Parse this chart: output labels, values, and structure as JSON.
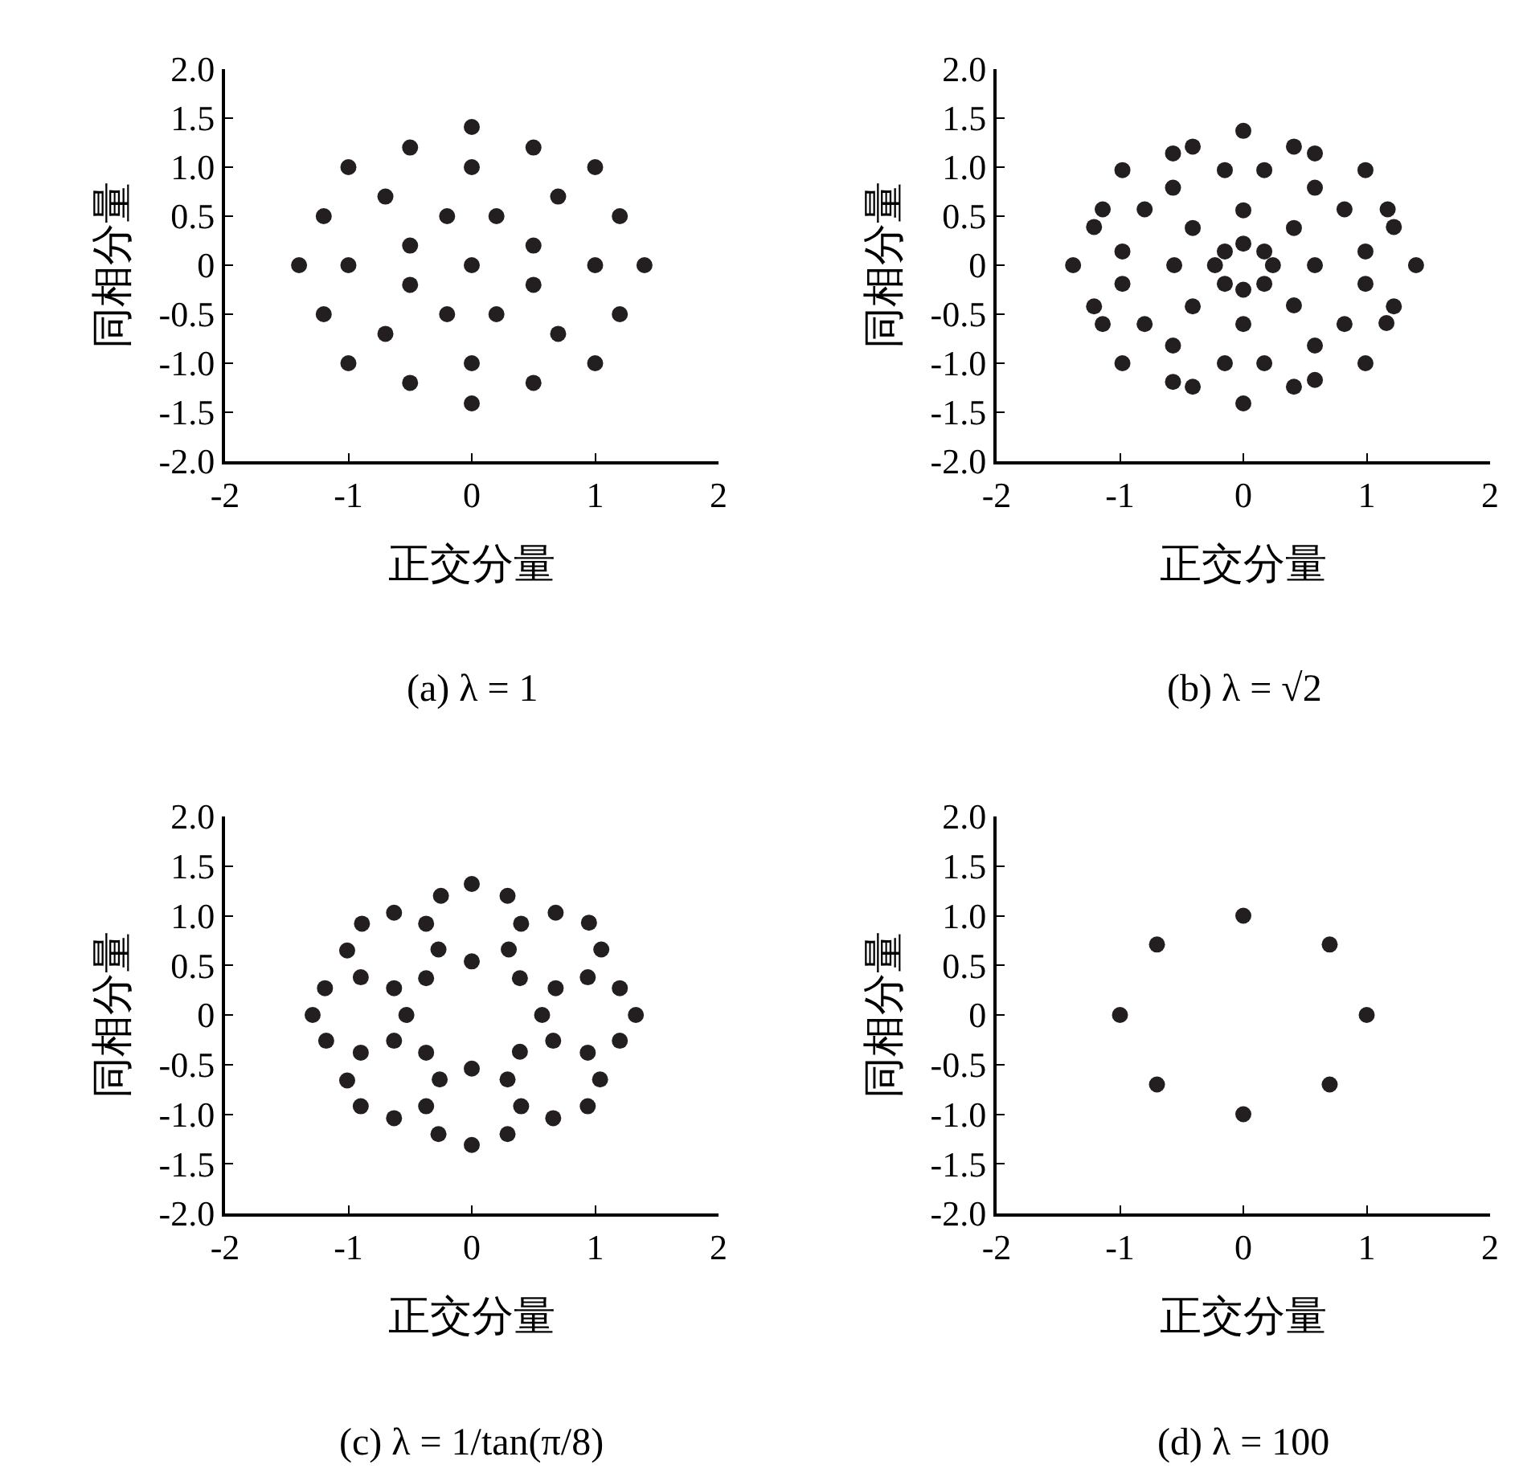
{
  "chart_data": [
    {
      "type": "scatter",
      "title": "(a) λ = 1",
      "xlabel": "正交分量",
      "ylabel": "同相分量",
      "color": "#231f20",
      "marker": "circle",
      "grid": false,
      "x": [
        0,
        -0.5,
        0.5,
        -1,
        0,
        1,
        -0.7,
        0.7,
        -1.2,
        -0.2,
        0.2,
        1.2,
        -0.5,
        0.5,
        -1.4,
        -1,
        0,
        1,
        1.4,
        -0.5,
        0.5,
        -1.2,
        -0.2,
        0.2,
        1.2,
        -0.7,
        0.7,
        -1,
        0,
        1,
        -0.5,
        0.5,
        0
      ],
      "values": [
        1.41,
        1.2,
        1.2,
        1,
        1,
        1,
        0.7,
        0.7,
        0.5,
        0.5,
        0.5,
        0.5,
        0.2,
        0.2,
        0,
        0,
        0,
        0,
        0,
        -0.2,
        -0.2,
        -0.5,
        -0.5,
        -0.5,
        -0.5,
        -0.7,
        -0.7,
        -1,
        -1,
        -1,
        -1.2,
        -1.2,
        -1.41
      ],
      "xlim": [
        -2,
        2
      ],
      "xticks": [
        -2,
        -1,
        0,
        1,
        2
      ],
      "ylim": [
        -2,
        2
      ],
      "yticks": [
        {
          "value": -2,
          "label": "-2.0"
        },
        {
          "value": -1.5,
          "label": "-1.5"
        },
        {
          "value": -1,
          "label": "-1.0"
        },
        {
          "value": -0.5,
          "label": "-0.5"
        },
        {
          "value": 0,
          "label": "0"
        },
        {
          "value": 0.5,
          "label": "0.5"
        },
        {
          "value": 1,
          "label": "1.0"
        },
        {
          "value": 1.5,
          "label": "1.5"
        },
        {
          "value": 2,
          "label": "2.0"
        }
      ]
    },
    {
      "type": "scatter",
      "title": "(b) λ = √2",
      "xlabel": "正交分量",
      "ylabel": "同相分量",
      "color": "#231f20",
      "marker": "circle",
      "grid": false,
      "x": [
        0,
        -0.57,
        -0.41,
        0.41,
        0.58,
        -0.98,
        -0.15,
        0.17,
        0.99,
        -0.57,
        0.58,
        -1.14,
        -0.8,
        0,
        0.82,
        1.17,
        -1.21,
        -0.41,
        0.41,
        1.22,
        -0.98,
        -0.15,
        0,
        0.17,
        0.99,
        -1.38,
        -0.56,
        -0.23,
        0.24,
        0.58,
        1.4,
        -0.98,
        -0.15,
        0,
        0.17,
        0.99,
        -1.21,
        -0.41,
        0.41,
        1.22,
        -1.14,
        -0.8,
        0,
        0.82,
        1.16,
        -0.57,
        0.58,
        -0.98,
        -0.15,
        0.17,
        0.99,
        -0.57,
        -0.41,
        0.41,
        0.58,
        0
      ],
      "values": [
        1.37,
        1.14,
        1.21,
        1.21,
        1.14,
        0.97,
        0.97,
        0.97,
        0.97,
        0.79,
        0.79,
        0.57,
        0.57,
        0.56,
        0.57,
        0.57,
        0.39,
        0.38,
        0.38,
        0.39,
        0.14,
        0.14,
        0.22,
        0.14,
        0.14,
        0,
        0,
        0,
        0,
        0,
        0,
        -0.19,
        -0.19,
        -0.25,
        -0.19,
        -0.19,
        -0.42,
        -0.42,
        -0.41,
        -0.42,
        -0.6,
        -0.6,
        -0.6,
        -0.6,
        -0.59,
        -0.82,
        -0.82,
        -1,
        -1,
        -1,
        -1,
        -1.19,
        -1.24,
        -1.24,
        -1.17,
        -1.41
      ],
      "xlim": [
        -2,
        2
      ],
      "xticks": [
        -2,
        -1,
        0,
        1,
        2
      ],
      "ylim": [
        -2,
        2
      ],
      "yticks": [
        {
          "value": -2,
          "label": "-2.0"
        },
        {
          "value": -1.5,
          "label": "-1.5"
        },
        {
          "value": -1,
          "label": "-1.0"
        },
        {
          "value": -0.5,
          "label": "-0.5"
        },
        {
          "value": 0,
          "label": "0"
        },
        {
          "value": 0.5,
          "label": "0.5"
        },
        {
          "value": 1,
          "label": "1.0"
        },
        {
          "value": 1.5,
          "label": "1.5"
        },
        {
          "value": 2,
          "label": "2.0"
        }
      ]
    },
    {
      "type": "scatter",
      "title": "(c) λ = 1/tan(π/8)",
      "xlabel": "正交分量",
      "ylabel": "同相分量",
      "color": "#231f20",
      "marker": "circle",
      "grid": false,
      "x": [
        0,
        -0.25,
        0.29,
        -0.63,
        0.68,
        -0.89,
        -0.37,
        0.4,
        0.95,
        -1.01,
        -0.27,
        0.3,
        1.05,
        0,
        -0.9,
        -0.37,
        0.39,
        0.94,
        -1.19,
        -0.63,
        0.68,
        1.2,
        -1.29,
        -0.53,
        0.57,
        1.33,
        -1.18,
        -0.63,
        0.66,
        1.2,
        -0.9,
        -0.37,
        0.39,
        0.94,
        0,
        -1.01,
        -0.26,
        0.29,
        1.04,
        -0.9,
        -0.37,
        0.4,
        0.94,
        -0.63,
        0.66,
        -0.27,
        0.29,
        0
      ],
      "values": [
        1.32,
        1.2,
        1.2,
        1.03,
        1.03,
        0.92,
        0.92,
        0.92,
        0.93,
        0.65,
        0.66,
        0.66,
        0.66,
        0.54,
        0.38,
        0.37,
        0.37,
        0.38,
        0.27,
        0.27,
        0.27,
        0.27,
        0,
        0,
        0,
        0,
        -0.26,
        -0.26,
        -0.26,
        -0.26,
        -0.38,
        -0.38,
        -0.37,
        -0.38,
        -0.54,
        -0.66,
        -0.65,
        -0.65,
        -0.65,
        -0.92,
        -0.92,
        -0.92,
        -0.92,
        -1.04,
        -1.04,
        -1.2,
        -1.2,
        -1.31
      ],
      "xlim": [
        -2,
        2
      ],
      "xticks": [
        -2,
        -1,
        0,
        1,
        2
      ],
      "ylim": [
        -2,
        2
      ],
      "yticks": [
        {
          "value": -2,
          "label": "-2.0"
        },
        {
          "value": -1.5,
          "label": "-1.5"
        },
        {
          "value": -1,
          "label": "-1.0"
        },
        {
          "value": -0.5,
          "label": "-0.5"
        },
        {
          "value": 0,
          "label": "0"
        },
        {
          "value": 0.5,
          "label": "0.5"
        },
        {
          "value": 1,
          "label": "1.0"
        },
        {
          "value": 1.5,
          "label": "1.5"
        },
        {
          "value": 2,
          "label": "2.0"
        }
      ]
    },
    {
      "type": "scatter",
      "title": "(d) λ = 100",
      "xlabel": "正交分量",
      "ylabel": "同相分量",
      "color": "#231f20",
      "marker": "circle",
      "grid": false,
      "x": [
        0,
        -0.7,
        0.7,
        -1,
        1,
        -0.7,
        0.7,
        0
      ],
      "values": [
        1,
        0.71,
        0.71,
        0,
        0,
        -0.7,
        -0.7,
        -1
      ],
      "xlim": [
        -2,
        2
      ],
      "xticks": [
        -2,
        -1,
        0,
        1,
        2
      ],
      "ylim": [
        -2,
        2
      ],
      "yticks": [
        {
          "value": -2,
          "label": "-2.0"
        },
        {
          "value": -1.5,
          "label": "-1.5"
        },
        {
          "value": -1,
          "label": "-1.0"
        },
        {
          "value": -0.5,
          "label": "-0.5"
        },
        {
          "value": 0,
          "label": "0"
        },
        {
          "value": 0.5,
          "label": "0.5"
        },
        {
          "value": 1,
          "label": "1.0"
        },
        {
          "value": 1.5,
          "label": "1.5"
        },
        {
          "value": 2,
          "label": "2.0"
        }
      ]
    }
  ]
}
